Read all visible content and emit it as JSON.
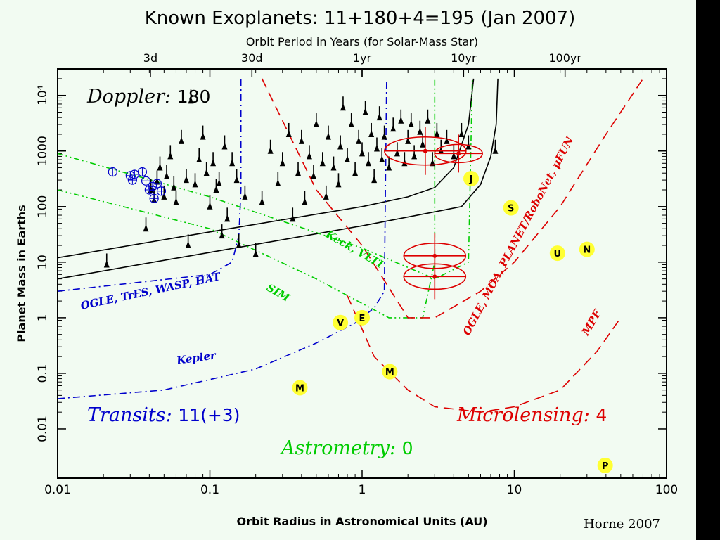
{
  "chart_data": {
    "type": "scatter",
    "title": "Known Exoplanets: 11+180+4=195 (Jan 2007)",
    "top_axis_label": "Orbit Period in Years (for Solar-Mass Star)",
    "top_ticks": [
      {
        "label": "3d",
        "period_yr": 0.00821
      },
      {
        "label": "30d",
        "period_yr": 0.0821
      },
      {
        "label": "1yr",
        "period_yr": 1
      },
      {
        "label": "10yr",
        "period_yr": 10
      },
      {
        "label": "100yr",
        "period_yr": 100
      }
    ],
    "xlabel": "Orbit Radius in Astronomical Units (AU)",
    "ylabel": "Planet Mass in Earths",
    "x_scale": "log",
    "y_scale": "log",
    "xlim": [
      0.01,
      100
    ],
    "ylim": [
      0.0013,
      30000
    ],
    "x_ticks": [
      "0.01",
      "0.1",
      "1",
      "10",
      "100"
    ],
    "y_ticks": [
      "0.01",
      "0.1",
      "1",
      "10",
      "100",
      "1000",
      "10⁴"
    ],
    "y_tick_values": [
      0.01,
      0.1,
      1,
      10,
      100,
      1000,
      10000
    ],
    "credit": "Horne 2007",
    "colors": {
      "doppler": "#000000",
      "transits": "#0000cc",
      "astrometry": "#00cc00",
      "microlensing": "#dd0000",
      "solar": "#ffff33"
    },
    "method_labels": [
      {
        "id": "doppler",
        "name": "Doppler",
        "count": "180",
        "position": "top-left"
      },
      {
        "id": "transits",
        "name": "Transits",
        "count": "11(+3)",
        "position": "bottom-left"
      },
      {
        "id": "astrometry",
        "name": "Astrometry",
        "count": "0",
        "position": "bottom-center"
      },
      {
        "id": "microlensing",
        "name": "Microlensing",
        "count": "4",
        "position": "bottom-right"
      }
    ],
    "annotations": [
      {
        "id": "ogle-transit",
        "text": "OGLE, TrES, WASP, HAT",
        "color": "#0000cc"
      },
      {
        "id": "kepler",
        "text": "Kepler",
        "color": "#0000cc"
      },
      {
        "id": "sim",
        "text": "SIM",
        "color": "#00cc00"
      },
      {
        "id": "keck",
        "text": "Keck, VLTI",
        "color": "#00cc00"
      },
      {
        "id": "ogle-micro",
        "text": "OGLE, MOA, PLANET/RoboNet, μFUN",
        "color": "#dd0000"
      },
      {
        "id": "mpf",
        "text": "MPF",
        "color": "#dd0000"
      }
    ],
    "solar_system": [
      {
        "label": "V",
        "x": 0.72,
        "y": 0.82
      },
      {
        "label": "E",
        "x": 1.0,
        "y": 1.0
      },
      {
        "label": "M",
        "x": 1.52,
        "y": 0.107
      },
      {
        "label": "M",
        "x": 0.39,
        "y": 0.055
      },
      {
        "label": "J",
        "x": 5.2,
        "y": 318
      },
      {
        "label": "S",
        "x": 9.5,
        "y": 95
      },
      {
        "label": "U",
        "x": 19.2,
        "y": 14.5
      },
      {
        "label": "N",
        "x": 30,
        "y": 17
      },
      {
        "label": "P",
        "x": 39.5,
        "y": 0.0022
      }
    ],
    "doppler_planets": [
      [
        0.021,
        9
      ],
      [
        0.038,
        40
      ],
      [
        0.041,
        200
      ],
      [
        0.043,
        130
      ],
      [
        0.045,
        280
      ],
      [
        0.047,
        500
      ],
      [
        0.05,
        150
      ],
      [
        0.052,
        350
      ],
      [
        0.055,
        800
      ],
      [
        0.058,
        220
      ],
      [
        0.06,
        120
      ],
      [
        0.065,
        1500
      ],
      [
        0.07,
        300
      ],
      [
        0.072,
        20
      ],
      [
        0.075,
        8000
      ],
      [
        0.08,
        250
      ],
      [
        0.085,
        700
      ],
      [
        0.09,
        1800
      ],
      [
        0.095,
        400
      ],
      [
        0.1,
        100
      ],
      [
        0.105,
        600
      ],
      [
        0.11,
        200
      ],
      [
        0.115,
        260
      ],
      [
        0.12,
        30
      ],
      [
        0.125,
        1200
      ],
      [
        0.13,
        60
      ],
      [
        0.14,
        600
      ],
      [
        0.15,
        300
      ],
      [
        0.155,
        20
      ],
      [
        0.17,
        150
      ],
      [
        0.2,
        14
      ],
      [
        0.22,
        120
      ],
      [
        0.25,
        1000
      ],
      [
        0.28,
        260
      ],
      [
        0.3,
        600
      ],
      [
        0.33,
        2000
      ],
      [
        0.35,
        60
      ],
      [
        0.38,
        400
      ],
      [
        0.4,
        1500
      ],
      [
        0.42,
        120
      ],
      [
        0.45,
        800
      ],
      [
        0.48,
        350
      ],
      [
        0.5,
        3000
      ],
      [
        0.55,
        600
      ],
      [
        0.58,
        150
      ],
      [
        0.6,
        1800
      ],
      [
        0.65,
        500
      ],
      [
        0.7,
        250
      ],
      [
        0.72,
        1200
      ],
      [
        0.75,
        6000
      ],
      [
        0.8,
        700
      ],
      [
        0.85,
        3000
      ],
      [
        0.9,
        400
      ],
      [
        0.95,
        1500
      ],
      [
        1.0,
        900
      ],
      [
        1.05,
        5000
      ],
      [
        1.1,
        600
      ],
      [
        1.15,
        2000
      ],
      [
        1.2,
        300
      ],
      [
        1.25,
        1100
      ],
      [
        1.3,
        4000
      ],
      [
        1.35,
        700
      ],
      [
        1.4,
        1800
      ],
      [
        1.5,
        500
      ],
      [
        1.6,
        2500
      ],
      [
        1.7,
        900
      ],
      [
        1.8,
        3500
      ],
      [
        1.9,
        600
      ],
      [
        2.0,
        1500
      ],
      [
        2.1,
        3000
      ],
      [
        2.2,
        800
      ],
      [
        2.4,
        2200
      ],
      [
        2.5,
        1300
      ],
      [
        2.7,
        3500
      ],
      [
        2.9,
        600
      ],
      [
        3.1,
        2000
      ],
      [
        3.3,
        1000
      ],
      [
        3.6,
        1500
      ],
      [
        4.0,
        800
      ],
      [
        4.5,
        2000
      ],
      [
        5.0,
        1200
      ],
      [
        7.5,
        1000
      ]
    ],
    "transit_planets": [
      [
        0.023,
        420
      ],
      [
        0.03,
        360
      ],
      [
        0.031,
        300
      ],
      [
        0.032,
        380
      ],
      [
        0.036,
        420
      ],
      [
        0.038,
        290
      ],
      [
        0.04,
        200
      ],
      [
        0.042,
        230
      ],
      [
        0.043,
        140
      ],
      [
        0.045,
        260
      ],
      [
        0.048,
        190
      ]
    ],
    "microlensing_planets": [
      {
        "x": 2.6,
        "y": 1000
      },
      {
        "x": 4.3,
        "y": 900
      },
      {
        "x": 3.0,
        "y": 13
      },
      {
        "x": 3.0,
        "y": 5.5
      }
    ],
    "curves": [
      {
        "name": "Doppler current",
        "color": "#000000",
        "style": "solid",
        "points": [
          [
            0.01,
            12
          ],
          [
            0.1,
            35
          ],
          [
            1,
            100
          ],
          [
            2,
            150
          ],
          [
            3,
            220
          ],
          [
            4,
            500
          ],
          [
            5,
            3000
          ],
          [
            5.4,
            20000
          ]
        ]
      },
      {
        "name": "Doppler future",
        "color": "#000000",
        "style": "solid",
        "points": [
          [
            0.01,
            5
          ],
          [
            0.1,
            15
          ],
          [
            1,
            45
          ],
          [
            4.5,
            100
          ],
          [
            6,
            250
          ],
          [
            7,
            800
          ],
          [
            7.6,
            3000
          ],
          [
            7.8,
            20000
          ]
        ]
      },
      {
        "name": "OGLE, TrES, WASP, HAT",
        "color": "#0000cc",
        "style": "dashdot",
        "points": [
          [
            0.01,
            3
          ],
          [
            0.1,
            6
          ],
          [
            0.14,
            10
          ],
          [
            0.155,
            30
          ],
          [
            0.16,
            200
          ],
          [
            0.16,
            20000
          ]
        ]
      },
      {
        "name": "Kepler",
        "color": "#0000cc",
        "style": "dashdot",
        "points": [
          [
            0.01,
            0.035
          ],
          [
            0.05,
            0.05
          ],
          [
            0.2,
            0.12
          ],
          [
            0.5,
            0.35
          ],
          [
            0.9,
            0.8
          ],
          [
            1.2,
            1.5
          ],
          [
            1.4,
            3
          ],
          [
            1.45,
            20000
          ]
        ]
      },
      {
        "name": "SIM",
        "color": "#00cc00",
        "style": "dashdot2",
        "points": [
          [
            0.01,
            200
          ],
          [
            0.1,
            40
          ],
          [
            0.5,
            5
          ],
          [
            1.5,
            1
          ],
          [
            2.5,
            1
          ],
          [
            3,
            10
          ],
          [
            3,
            20000
          ]
        ]
      },
      {
        "name": "Keck, VLTI",
        "color": "#00cc00",
        "style": "dashdot2",
        "points": [
          [
            0.01,
            900
          ],
          [
            0.1,
            150
          ],
          [
            1,
            18
          ],
          [
            3,
            5
          ],
          [
            5,
            10
          ],
          [
            5.3,
            20000
          ]
        ]
      },
      {
        "name": "OGLE, MOA, PLANET/RoboNet, μFUN",
        "color": "#dd0000",
        "style": "dashed",
        "points": [
          [
            0.22,
            20000
          ],
          [
            0.5,
            200
          ],
          [
            1,
            20
          ],
          [
            2,
            1
          ],
          [
            3,
            1
          ],
          [
            6,
            3
          ],
          [
            10,
            10
          ],
          [
            20,
            100
          ],
          [
            40,
            2000
          ],
          [
            70,
            20000
          ]
        ]
      },
      {
        "name": "MPF",
        "color": "#dd0000",
        "style": "dashed",
        "points": [
          [
            0.8,
            2.5
          ],
          [
            1.2,
            0.2
          ],
          [
            2,
            0.05
          ],
          [
            3,
            0.025
          ],
          [
            6,
            0.02
          ],
          [
            10,
            0.025
          ],
          [
            20,
            0.05
          ],
          [
            35,
            0.25
          ],
          [
            50,
            1
          ]
        ]
      }
    ]
  }
}
